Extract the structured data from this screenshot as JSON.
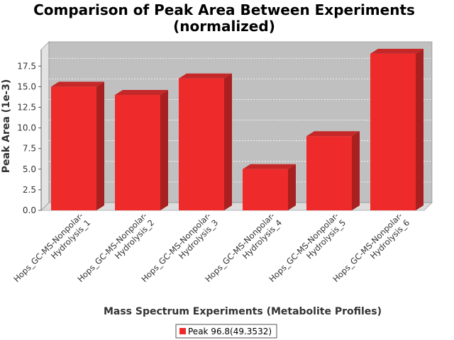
{
  "chart_data": {
    "type": "bar",
    "title_lines": [
      "Comparison of Peak Area Between Experiments",
      "(normalized)"
    ],
    "xlabel": "Mass Spectrum Experiments (Metabolite Profiles)",
    "ylabel": "Peak Area (1e-3)",
    "ylim": [
      0,
      19.5
    ],
    "yticks": [
      0,
      2.5,
      5,
      7.5,
      10,
      12.5,
      15,
      17.5
    ],
    "ytick_labels": [
      "0.0",
      "2.5",
      "5.0",
      "7.5",
      "10.0",
      "12.5",
      "15.0",
      "17.5"
    ],
    "grid": true,
    "legend_position": "bottom",
    "categories": [
      [
        "Hops_GC-MS-Nonpolar-",
        "Hydrolysis_1"
      ],
      [
        "Hops_GC-MS-Nonpolar-",
        "Hydrolysis_2"
      ],
      [
        "Hops_GC-MS-Nonpolar-",
        "Hydrolysis_3"
      ],
      [
        "Hops_GC-MS-Nonpolar-",
        "Hydrolysis_4"
      ],
      [
        "Hops_GC-MS-Nonpolar-",
        "Hydrolysis_5"
      ],
      [
        "Hops_GC-MS-Nonpolar-",
        "Hydrolysis_6"
      ]
    ],
    "series": [
      {
        "name": "Peak 96.8(49.3532)",
        "color": "#ee2a2a",
        "values": [
          15.0,
          14.0,
          16.0,
          5.0,
          9.0,
          19.0
        ]
      }
    ]
  },
  "colors": {
    "bar_front": "#ee2a2a",
    "bar_top": "#c42828",
    "bar_side": "#a82020",
    "plot_back": "#c0c0c0",
    "plot_floor": "#dcdcdc",
    "plot_left_wall": "#e2e2e2"
  }
}
